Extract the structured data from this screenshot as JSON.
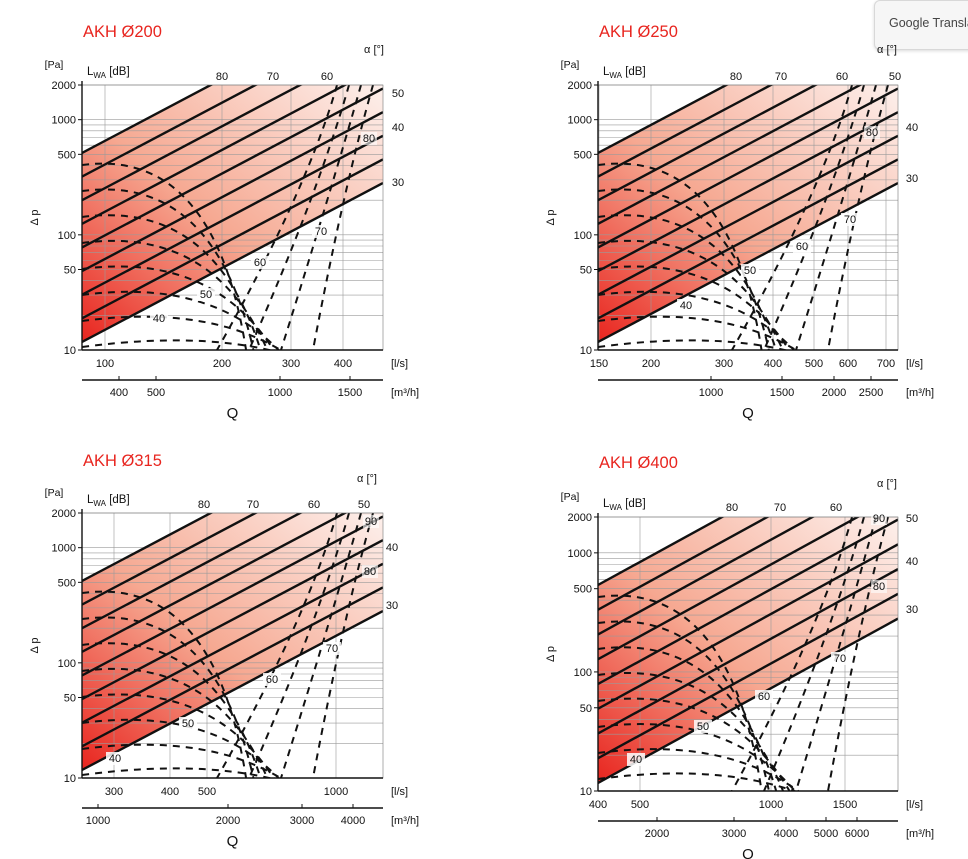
{
  "translate_widget": {
    "label": "Google Transla"
  },
  "colors": {
    "title": "#e8251f",
    "fill_dark": "#e8251f",
    "fill_light": "#fdf0ec",
    "grid": "#9a9a9a",
    "line": "#111111"
  },
  "chart_data": [
    {
      "type": "line",
      "title": "AKH  Ø200",
      "ylabel": "Δ p",
      "yunit": "[Pa]",
      "lw_label": "L",
      "lw_sub": "WA",
      "lw_unit": " [dB]",
      "alpha_label": "α [°]",
      "y_scale": "log",
      "ylim": [
        10,
        2000
      ],
      "y_ticks": [
        "2000",
        "1000",
        "500",
        "100",
        "50",
        "10"
      ],
      "x_scale": "log",
      "xlim": [
        78,
        460
      ],
      "x_unit": "[l/s]",
      "x_ticks": [
        "100",
        "200",
        "300",
        "400"
      ],
      "x2_unit": "[m³/h]",
      "x2_ticks": [
        "400",
        "500",
        "1000",
        "1500"
      ],
      "xlabel": "Q",
      "top_labels": [
        "80",
        "70",
        "60"
      ],
      "alpha_labels": [
        "50",
        "40",
        "80",
        "30"
      ],
      "inside_labels": [
        "70",
        "60",
        "50",
        "40"
      ]
    },
    {
      "type": "line",
      "title": "AKH  Ø250",
      "ylabel": "Δ p",
      "yunit": "[Pa]",
      "lw_label": "L",
      "lw_sub": "WA",
      "lw_unit": " [dB]",
      "alpha_label": "α [°]",
      "y_scale": "log",
      "ylim": [
        10,
        2000
      ],
      "y_ticks": [
        "2000",
        "1000",
        "500",
        "100",
        "50",
        "10"
      ],
      "x_scale": "log",
      "xlim": [
        150,
        780
      ],
      "x_unit": "[l/s]",
      "x_ticks": [
        "150",
        "200",
        "300",
        "400",
        "500",
        "600",
        "700"
      ],
      "x2_unit": "[m³/h]",
      "x2_ticks": [
        "1000",
        "1500",
        "2000",
        "2500"
      ],
      "xlabel": "Q",
      "top_labels": [
        "80",
        "70",
        "60",
        "50"
      ],
      "alpha_labels": [
        "40",
        "80",
        "30"
      ],
      "inside_labels": [
        "70",
        "60",
        "50",
        "40"
      ]
    },
    {
      "type": "line",
      "title": "AKH  Ø315",
      "ylabel": "Δ p",
      "yunit": "[Pa]",
      "lw_label": "L",
      "lw_sub": "WA",
      "lw_unit": " [dB]",
      "alpha_label": "α [°]",
      "y_scale": "log",
      "ylim": [
        10,
        2000
      ],
      "y_ticks": [
        "2000",
        "1000",
        "500",
        "100",
        "50",
        "10"
      ],
      "x_scale": "log",
      "xlim": [
        250,
        1300
      ],
      "x_unit": "[l/s]",
      "x_ticks": [
        "300",
        "400",
        "500",
        "1000"
      ],
      "x2_unit": "[m³/h]",
      "x2_ticks": [
        "1000",
        "2000",
        "3000",
        "4000"
      ],
      "xlabel": "Q",
      "top_labels": [
        "80",
        "70",
        "60",
        "50"
      ],
      "alpha_labels": [
        "90",
        "40",
        "80",
        "30"
      ],
      "inside_labels": [
        "70",
        "60",
        "50",
        "40"
      ]
    },
    {
      "type": "line",
      "title": "AKH  Ø400",
      "ylabel": "Δ p",
      "yunit": "[Pa]",
      "lw_label": "L",
      "lw_sub": "WA",
      "lw_unit": " [dB]",
      "alpha_label": "α [°]",
      "y_scale": "log",
      "ylim": [
        10,
        2000
      ],
      "y_ticks": [
        "2000",
        "1000",
        "500",
        "100",
        "50",
        "10"
      ],
      "x_scale": "log",
      "xlim": [
        400,
        2000
      ],
      "x_unit": "[l/s]",
      "x_ticks": [
        "400",
        "500",
        "1000",
        "1500"
      ],
      "x2_unit": "[m³/h]",
      "x2_ticks": [
        "2000",
        "3000",
        "4000",
        "5000",
        "6000"
      ],
      "xlabel": "Q",
      "top_labels": [
        "80",
        "70",
        "60"
      ],
      "alpha_labels": [
        "90",
        "50",
        "40",
        "80",
        "30"
      ],
      "inside_labels": [
        "70",
        "60",
        "50",
        "40"
      ]
    }
  ]
}
